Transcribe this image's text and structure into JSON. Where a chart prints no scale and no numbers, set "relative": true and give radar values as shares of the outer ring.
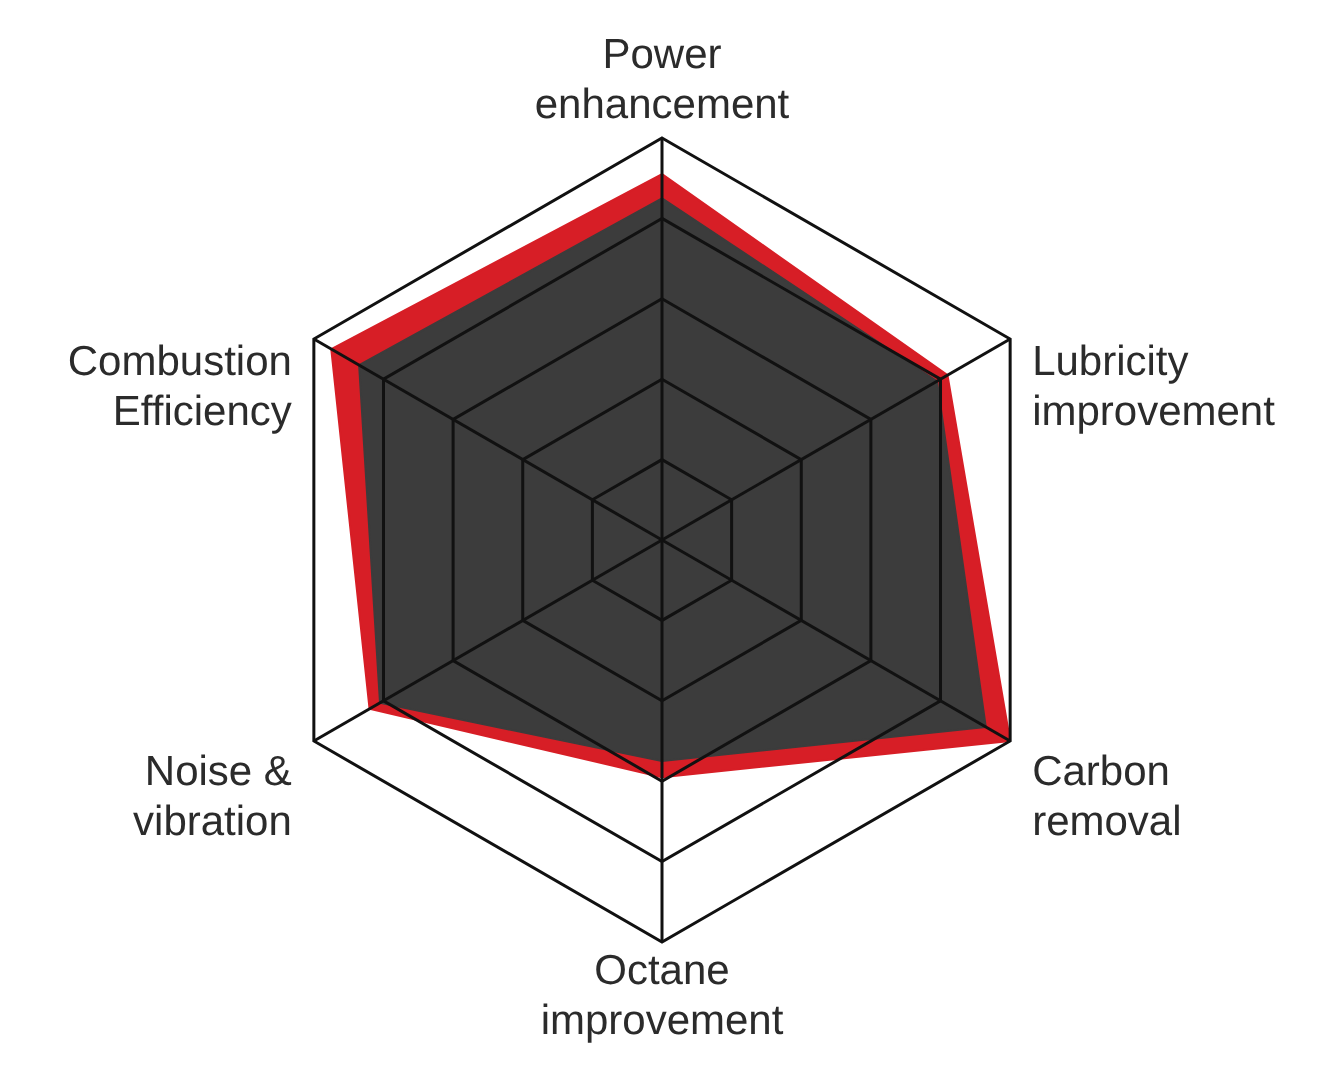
{
  "chart_data": {
    "type": "radar",
    "relative": true,
    "grid": true,
    "categories": [
      "Power enhancement",
      "Lubricity improvement",
      "Carbon removal",
      "Octane improvement",
      "Noise & vibration",
      "Combustion Efficiency"
    ],
    "series": [
      {
        "color": "#d71e26",
        "values": [
          0.91,
          0.82,
          1.0,
          0.59,
          0.84,
          0.95
        ]
      },
      {
        "color": "#3c3c3c",
        "values": [
          0.85,
          0.79,
          0.93,
          0.55,
          0.81,
          0.87
        ]
      }
    ]
  }
}
